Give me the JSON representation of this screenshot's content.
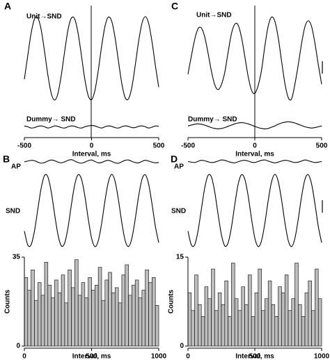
{
  "chart_data": [
    {
      "type": "line",
      "label": "A",
      "xlabel": "Interval, ms",
      "xlim": [
        -500,
        500
      ],
      "xticks": [
        -500,
        0,
        500
      ],
      "ylim": [
        -1.85,
        1.1
      ],
      "x": [
        -500,
        -475,
        -450,
        -425,
        -400,
        -375,
        -350,
        -325,
        -300,
        -275,
        -250,
        -225,
        -200,
        -175,
        -150,
        -125,
        -100,
        -75,
        -50,
        -25,
        0,
        25,
        50,
        75,
        100,
        125,
        150,
        175,
        200,
        225,
        250,
        275,
        300,
        325,
        350,
        375,
        400,
        425,
        450,
        475,
        500
      ],
      "series": [
        {
          "name": "Unit→SND",
          "color": "#000000",
          "values": [
            -0.5,
            0.06,
            0.6,
            0.94,
            0.97,
            0.69,
            0.17,
            -0.4,
            -0.84,
            -1.0,
            -0.84,
            -0.4,
            0.17,
            0.69,
            0.97,
            0.94,
            0.6,
            0.06,
            -0.5,
            -0.89,
            -0.99,
            -0.77,
            -0.29,
            0.29,
            0.77,
            0.99,
            0.89,
            0.5,
            -0.06,
            -0.6,
            -0.94,
            -0.97,
            -0.69,
            -0.17,
            0.4,
            0.84,
            1.0,
            0.84,
            0.4,
            -0.17,
            -0.69
          ]
        },
        {
          "name": "Dummy→ SND",
          "color": "#000000",
          "values": [
            -1.62,
            -1.64,
            -1.67,
            -1.66,
            -1.63,
            -1.62,
            -1.64,
            -1.67,
            -1.65,
            -1.62,
            -1.63,
            -1.66,
            -1.67,
            -1.64,
            -1.62,
            -1.63,
            -1.66,
            -1.67,
            -1.64,
            -1.62,
            -1.61,
            -1.62,
            -1.65,
            -1.67,
            -1.64,
            -1.62,
            -1.63,
            -1.66,
            -1.67,
            -1.64,
            -1.62,
            -1.63,
            -1.66,
            -1.66,
            -1.63,
            -1.62,
            -1.64,
            -1.67,
            -1.65,
            -1.62,
            -1.63
          ]
        }
      ]
    },
    {
      "type": "line",
      "label": "C",
      "xlabel": "Interval, ms",
      "xlim": [
        -500,
        500
      ],
      "xticks": [
        -500,
        0,
        500
      ],
      "ylim": [
        -1.85,
        1.1
      ],
      "x": [
        -500,
        -475,
        -450,
        -425,
        -400,
        -375,
        -350,
        -325,
        -300,
        -275,
        -250,
        -225,
        -200,
        -175,
        -150,
        -125,
        -100,
        -75,
        -50,
        -25,
        0,
        25,
        50,
        75,
        100,
        125,
        150,
        175,
        200,
        225,
        250,
        275,
        300,
        325,
        350,
        375,
        400,
        425,
        450,
        475,
        500
      ],
      "series": [
        {
          "name": "Unit→SND",
          "color": "#000000",
          "values": [
            -0.38,
            0.05,
            0.45,
            0.71,
            0.73,
            0.52,
            0.13,
            -0.3,
            -0.63,
            -0.75,
            -0.63,
            -0.34,
            0.14,
            0.59,
            0.82,
            0.8,
            0.51,
            0.05,
            -0.43,
            -0.76,
            -0.84,
            -0.65,
            -0.29,
            0.29,
            0.77,
            0.99,
            0.89,
            0.5,
            -0.06,
            -0.6,
            -0.94,
            -0.97,
            -0.62,
            -0.15,
            0.36,
            0.76,
            0.9,
            0.76,
            0.36,
            -0.15,
            -0.62
          ]
        },
        {
          "name": "Dummy→ SND",
          "color": "#000000",
          "values": [
            -1.62,
            -1.6,
            -1.58,
            -1.57,
            -1.58,
            -1.6,
            -1.63,
            -1.66,
            -1.68,
            -1.69,
            -1.68,
            -1.66,
            -1.63,
            -1.6,
            -1.57,
            -1.55,
            -1.54,
            -1.55,
            -1.57,
            -1.6,
            -1.63,
            -1.66,
            -1.68,
            -1.69,
            -1.68,
            -1.65,
            -1.62,
            -1.58,
            -1.55,
            -1.53,
            -1.52,
            -1.53,
            -1.55,
            -1.58,
            -1.61,
            -1.64,
            -1.66,
            -1.67,
            -1.66,
            -1.64,
            -1.62
          ]
        }
      ]
    },
    {
      "type": "line",
      "label": "B",
      "xlim": [
        0,
        1000
      ],
      "ylim": [
        -1.1,
        1.5
      ],
      "x": [
        0,
        25,
        50,
        75,
        100,
        125,
        150,
        175,
        200,
        225,
        250,
        275,
        300,
        325,
        350,
        375,
        400,
        425,
        450,
        475,
        500,
        525,
        550,
        575,
        600,
        625,
        650,
        675,
        700,
        725,
        750,
        775,
        800,
        825,
        850,
        875,
        900,
        925,
        950,
        975,
        1000
      ],
      "series": [
        {
          "name": "AP",
          "color": "#000000",
          "values": [
            1.35,
            1.37,
            1.39,
            1.38,
            1.34,
            1.31,
            1.33,
            1.37,
            1.4,
            1.38,
            1.34,
            1.32,
            1.35,
            1.39,
            1.41,
            1.37,
            1.33,
            1.31,
            1.34,
            1.38,
            1.4,
            1.36,
            1.32,
            1.33,
            1.37,
            1.39,
            1.36,
            1.32,
            1.31,
            1.35,
            1.39,
            1.4,
            1.36,
            1.33,
            1.32,
            1.36,
            1.39,
            1.37,
            1.34,
            1.32,
            1.33
          ]
        },
        {
          "name": "SND",
          "color": "#000000",
          "values": [
            -0.57,
            -0.95,
            -0.95,
            -0.57,
            0.03,
            0.62,
            0.97,
            0.93,
            0.52,
            -0.1,
            -0.67,
            -0.98,
            -0.9,
            -0.47,
            0.16,
            0.72,
            0.99,
            0.87,
            0.41,
            -0.22,
            -0.76,
            -1.0,
            -0.84,
            -0.36,
            0.27,
            0.79,
            1.0,
            0.81,
            0.3,
            -0.33,
            -0.83,
            -1.0,
            -0.77,
            -0.24,
            0.39,
            0.86,
            0.99,
            0.73,
            0.18,
            -0.44,
            -0.89
          ]
        }
      ]
    },
    {
      "type": "histogram",
      "ylabel": "Counts",
      "xlabel": "Interval, ms",
      "xlim": [
        0,
        1000
      ],
      "xticks": [
        0,
        500,
        1000
      ],
      "ylim": [
        0,
        35
      ],
      "yticks": [
        0,
        35
      ],
      "color": "#bdbdbd",
      "bins": [
        0,
        25,
        50,
        75,
        100,
        125,
        150,
        175,
        200,
        225,
        250,
        275,
        300,
        325,
        350,
        375,
        400,
        425,
        450,
        475,
        500,
        525,
        550,
        575,
        600,
        625,
        650,
        675,
        700,
        725,
        750,
        775,
        800,
        825,
        850,
        875,
        900,
        925,
        950,
        975,
        1000
      ],
      "values": [
        27,
        22,
        30,
        18,
        25,
        20,
        33,
        24,
        19,
        26,
        21,
        28,
        17,
        30,
        23,
        34,
        20,
        25,
        19,
        27,
        22,
        24,
        31,
        18,
        26,
        29,
        21,
        23,
        17,
        28,
        32,
        20,
        24,
        26,
        19,
        22,
        30,
        25,
        27,
        16
      ]
    },
    {
      "type": "line",
      "label": "D",
      "xlim": [
        0,
        1000
      ],
      "ylim": [
        -1.1,
        1.5
      ],
      "x": [
        0,
        25,
        50,
        75,
        100,
        125,
        150,
        175,
        200,
        225,
        250,
        275,
        300,
        325,
        350,
        375,
        400,
        425,
        450,
        475,
        500,
        525,
        550,
        575,
        600,
        625,
        650,
        675,
        700,
        725,
        750,
        775,
        800,
        825,
        850,
        875,
        900,
        925,
        950,
        975,
        1000
      ],
      "series": [
        {
          "name": "AP",
          "color": "#000000",
          "values": [
            1.36,
            1.34,
            1.33,
            1.36,
            1.39,
            1.38,
            1.35,
            1.33,
            1.34,
            1.37,
            1.4,
            1.39,
            1.36,
            1.33,
            1.32,
            1.35,
            1.38,
            1.39,
            1.37,
            1.34,
            1.33,
            1.36,
            1.39,
            1.4,
            1.37,
            1.34,
            1.32,
            1.34,
            1.37,
            1.39,
            1.38,
            1.35,
            1.33,
            1.34,
            1.37,
            1.4,
            1.38,
            1.35,
            1.33,
            1.34,
            1.36
          ]
        },
        {
          "name": "SND",
          "color": "#000000",
          "values": [
            -0.57,
            -0.95,
            -0.95,
            -0.57,
            0.03,
            0.62,
            0.97,
            0.93,
            0.52,
            -0.1,
            -0.67,
            -0.98,
            -0.9,
            -0.47,
            0.16,
            0.72,
            0.99,
            0.87,
            0.41,
            -0.22,
            -0.76,
            -1.0,
            -0.84,
            -0.36,
            0.27,
            0.79,
            1.0,
            0.81,
            0.3,
            -0.33,
            -0.83,
            -1.0,
            -0.77,
            -0.24,
            0.39,
            0.86,
            0.99,
            0.73,
            0.18,
            -0.44,
            -0.89
          ]
        }
      ]
    },
    {
      "type": "histogram",
      "ylabel": "Counts",
      "xlabel": "Interval, ms",
      "xlim": [
        0,
        1000
      ],
      "xticks": [
        0,
        500,
        1000
      ],
      "ylim": [
        0,
        15
      ],
      "yticks": [
        0,
        15
      ],
      "color": "#bdbdbd",
      "bins": [
        0,
        25,
        50,
        75,
        100,
        125,
        150,
        175,
        200,
        225,
        250,
        275,
        300,
        325,
        350,
        375,
        400,
        425,
        450,
        475,
        500,
        525,
        550,
        575,
        600,
        625,
        650,
        675,
        700,
        725,
        750,
        775,
        800,
        825,
        850,
        875,
        900,
        925,
        950,
        975,
        1000
      ],
      "values": [
        9,
        6,
        12,
        7,
        5,
        10,
        8,
        13,
        6,
        9,
        7,
        11,
        5,
        14,
        8,
        6,
        10,
        7,
        12,
        5,
        9,
        13,
        6,
        8,
        11,
        7,
        5,
        10,
        9,
        12,
        6,
        8,
        14,
        7,
        5,
        9,
        11,
        6,
        13,
        8
      ]
    }
  ]
}
